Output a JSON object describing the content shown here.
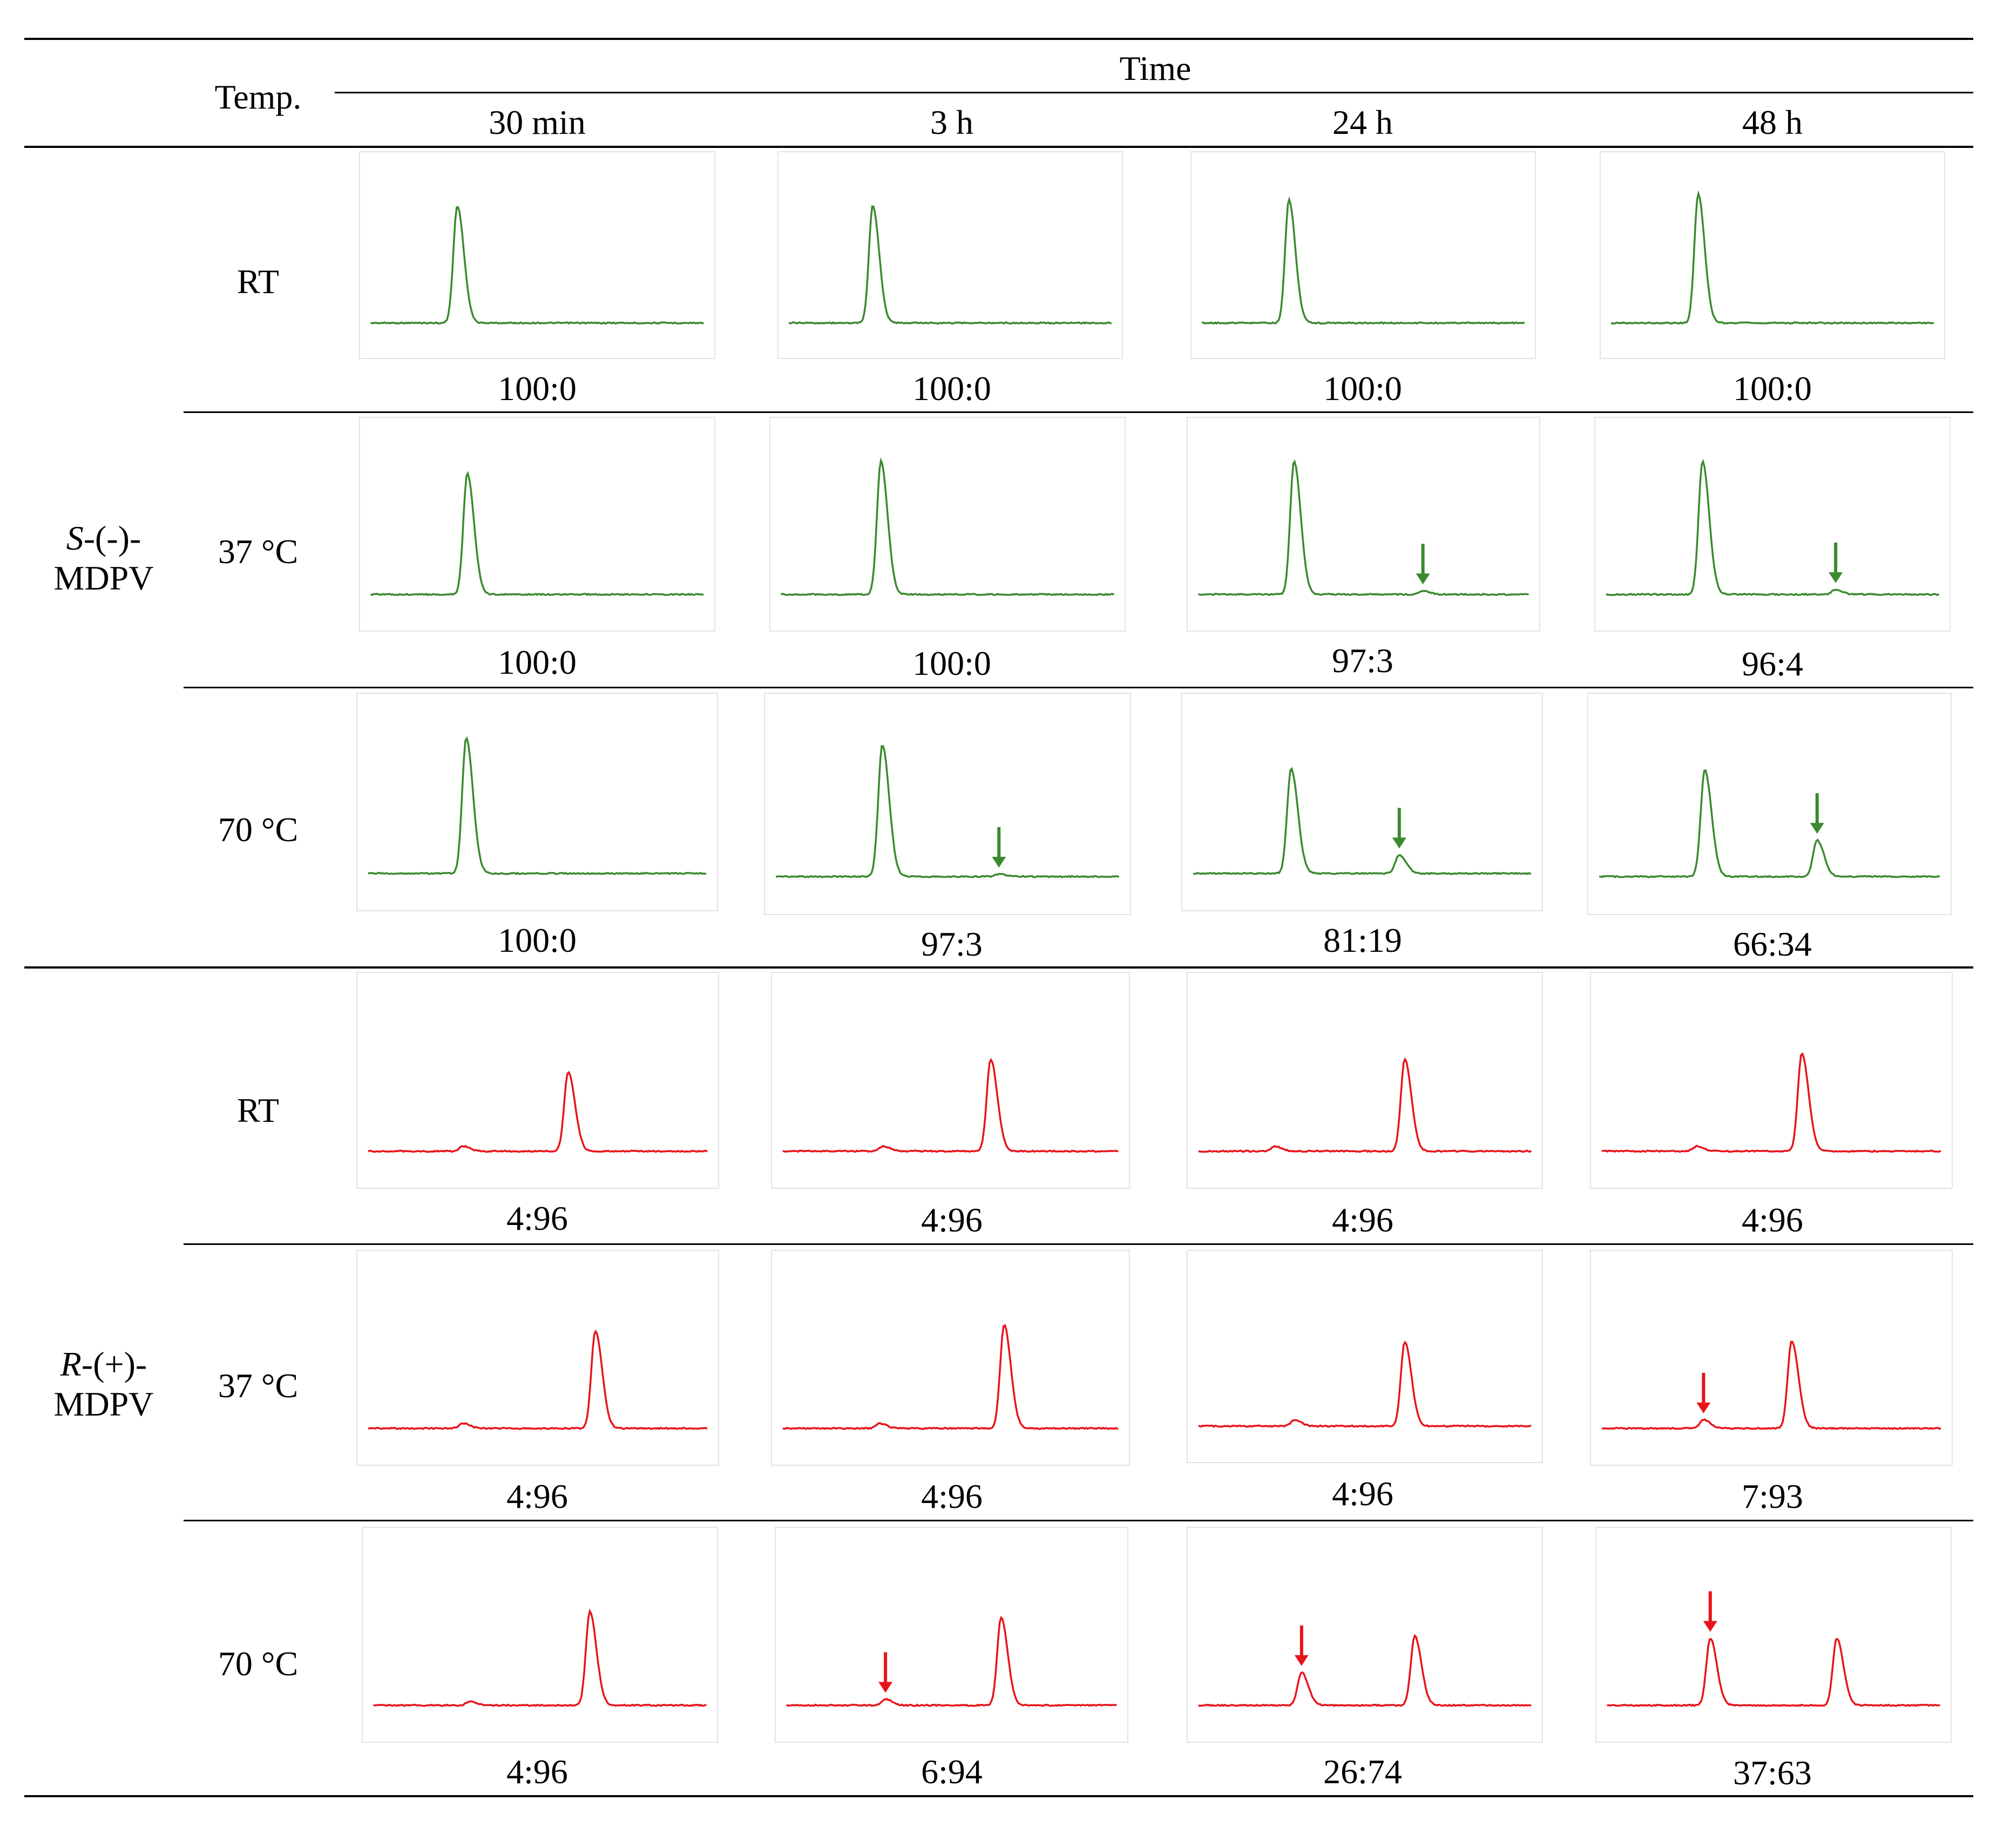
{
  "table": {
    "temp_header": "Temp.",
    "time_header": "Time",
    "time_columns": [
      "30 min",
      "3 h",
      "24 h",
      "48 h"
    ]
  },
  "colors": {
    "s_trace": "#3a8a2e",
    "r_trace": "#e8141b"
  },
  "groups": [
    {
      "id": "s",
      "compound_prefix": "S",
      "compound_suffix": "-(-)-",
      "compound_line2": "MDPV",
      "rows": [
        {
          "temp": "RT",
          "ratios": [
            "100:0",
            "100:0",
            "100:0",
            "100:0"
          ]
        },
        {
          "temp": "37 °C",
          "ratios": [
            "100:0",
            "100:0",
            "97:3",
            "96:4"
          ]
        },
        {
          "temp": "70 °C",
          "ratios": [
            "100:0",
            "97:3",
            "81:19",
            "66:34"
          ]
        }
      ]
    },
    {
      "id": "r",
      "compound_prefix": "R",
      "compound_suffix": "-(+)-",
      "compound_line2": "MDPV",
      "rows": [
        {
          "temp": "RT",
          "ratios": [
            "4:96",
            "4:96",
            "4:96",
            "4:96"
          ]
        },
        {
          "temp": "37 °C",
          "ratios": [
            "4:96",
            "4:96",
            "4:96",
            "7:93"
          ]
        },
        {
          "temp": "70 °C",
          "ratios": [
            "4:96",
            "6:94",
            "26:74",
            "37:63"
          ]
        }
      ]
    }
  ],
  "chromatograms": {
    "s": [
      [
        {
          "peaks": [
            {
              "rt": 0.26,
              "h": 1.0
            },
            {
              "rt": 0.82,
              "h": 0.0
            }
          ],
          "arrow": false
        },
        {
          "peaks": [
            {
              "rt": 0.26,
              "h": 1.0
            },
            {
              "rt": 0.82,
              "h": 0.0
            }
          ],
          "arrow": false
        },
        {
          "peaks": [
            {
              "rt": 0.27,
              "h": 1.05
            },
            {
              "rt": 0.82,
              "h": 0.0
            }
          ],
          "arrow": false
        },
        {
          "peaks": [
            {
              "rt": 0.27,
              "h": 1.1
            },
            {
              "rt": 0.82,
              "h": 0.0
            }
          ],
          "arrow": false
        }
      ],
      [
        {
          "peaks": [
            {
              "rt": 0.29,
              "h": 1.0
            },
            {
              "rt": 0.82,
              "h": 0.0
            }
          ],
          "arrow": false
        },
        {
          "peaks": [
            {
              "rt": 0.3,
              "h": 1.1
            },
            {
              "rt": 0.82,
              "h": 0.0
            }
          ],
          "arrow": false
        },
        {
          "peaks": [
            {
              "rt": 0.29,
              "h": 1.1
            },
            {
              "rt": 0.68,
              "h": 0.03
            }
          ],
          "arrow": true
        },
        {
          "peaks": [
            {
              "rt": 0.29,
              "h": 1.1
            },
            {
              "rt": 0.69,
              "h": 0.04
            }
          ],
          "arrow": true
        }
      ],
      [
        {
          "peaks": [
            {
              "rt": 0.29,
              "h": 1.1
            },
            {
              "rt": 0.82,
              "h": 0.0
            }
          ],
          "arrow": false
        },
        {
          "peaks": [
            {
              "rt": 0.31,
              "h": 1.05
            },
            {
              "rt": 0.65,
              "h": 0.02
            }
          ],
          "arrow": true
        },
        {
          "peaks": [
            {
              "rt": 0.29,
              "h": 0.85
            },
            {
              "rt": 0.61,
              "h": 0.15
            }
          ],
          "arrow": true
        },
        {
          "peaks": [
            {
              "rt": 0.31,
              "h": 0.85
            },
            {
              "rt": 0.64,
              "h": 0.29
            }
          ],
          "arrow": true
        }
      ]
    ],
    "r": [
      [
        {
          "peaks": [
            {
              "rt": 0.28,
              "h": 0.04
            },
            {
              "rt": 0.59,
              "h": 0.65
            }
          ],
          "arrow": false
        },
        {
          "peaks": [
            {
              "rt": 0.3,
              "h": 0.04
            },
            {
              "rt": 0.62,
              "h": 0.75
            }
          ],
          "arrow": false
        },
        {
          "peaks": [
            {
              "rt": 0.23,
              "h": 0.04
            },
            {
              "rt": 0.62,
              "h": 0.75
            }
          ],
          "arrow": false
        },
        {
          "peaks": [
            {
              "rt": 0.28,
              "h": 0.04
            },
            {
              "rt": 0.59,
              "h": 0.8
            }
          ],
          "arrow": false
        }
      ],
      [
        {
          "peaks": [
            {
              "rt": 0.28,
              "h": 0.04
            },
            {
              "rt": 0.67,
              "h": 0.8
            }
          ],
          "arrow": false
        },
        {
          "peaks": [
            {
              "rt": 0.29,
              "h": 0.04
            },
            {
              "rt": 0.66,
              "h": 0.85
            }
          ],
          "arrow": false
        },
        {
          "peaks": [
            {
              "rt": 0.29,
              "h": 0.05
            },
            {
              "rt": 0.62,
              "h": 0.7
            }
          ],
          "arrow": false
        },
        {
          "peaks": [
            {
              "rt": 0.3,
              "h": 0.07
            },
            {
              "rt": 0.56,
              "h": 0.72
            }
          ],
          "arrow": true
        }
      ],
      [
        {
          "peaks": [
            {
              "rt": 0.29,
              "h": 0.03
            },
            {
              "rt": 0.65,
              "h": 0.77
            }
          ],
          "arrow": false
        },
        {
          "peaks": [
            {
              "rt": 0.3,
              "h": 0.05
            },
            {
              "rt": 0.65,
              "h": 0.72
            }
          ],
          "arrow": true
        },
        {
          "peaks": [
            {
              "rt": 0.31,
              "h": 0.27
            },
            {
              "rt": 0.65,
              "h": 0.57
            }
          ],
          "arrow": true
        },
        {
          "peaks": [
            {
              "rt": 0.31,
              "h": 0.55
            },
            {
              "rt": 0.69,
              "h": 0.55
            }
          ],
          "arrow": true
        }
      ]
    ]
  }
}
